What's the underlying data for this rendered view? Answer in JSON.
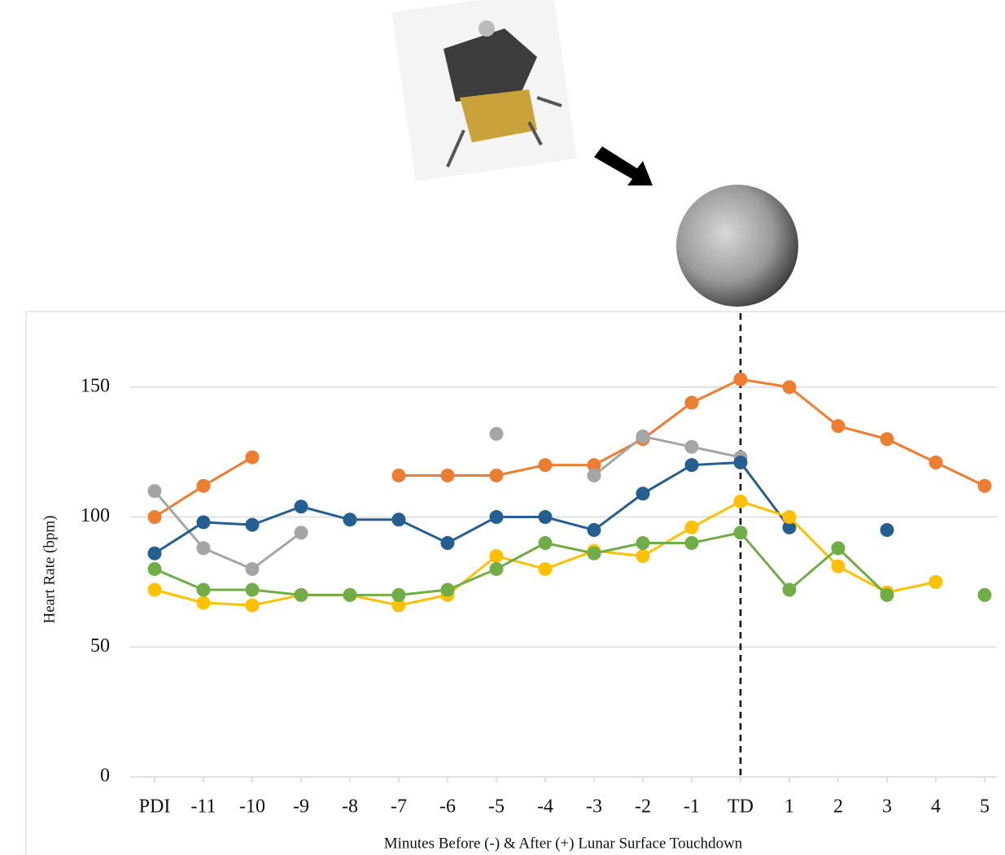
{
  "chart_data": {
    "type": "line",
    "y_label": "Heart Rate (bpm)",
    "x_label": "Minutes Before (-) & After (+) Lunar Surface Touchdown",
    "categories": [
      "PDI",
      "-11",
      "-10",
      "-9",
      "-8",
      "-7",
      "-6",
      "-5",
      "-4",
      "-3",
      "-2",
      "-1",
      "TD",
      "1",
      "2",
      "3",
      "4",
      "5"
    ],
    "ylim": [
      0,
      180
    ],
    "yticks": [
      0,
      50,
      100,
      150
    ],
    "grid": true,
    "series": [
      {
        "color": "#ed7d31",
        "values": [
          100,
          112,
          123,
          null,
          null,
          116,
          116,
          116,
          120,
          120,
          130,
          144,
          153,
          150,
          135,
          130,
          121,
          112
        ]
      },
      {
        "color": "#a5a5a5",
        "values": [
          110,
          88,
          80,
          94,
          null,
          null,
          null,
          132,
          null,
          116,
          131,
          127,
          123,
          null,
          null,
          null,
          null,
          null
        ]
      },
      {
        "color": "#255e91",
        "values": [
          86,
          98,
          97,
          104,
          99,
          99,
          90,
          100,
          100,
          95,
          109,
          120,
          121,
          96,
          null,
          95,
          null,
          null
        ]
      },
      {
        "color": "#ffc000",
        "values": [
          72,
          67,
          66,
          70,
          70,
          66,
          70,
          85,
          80,
          87,
          85,
          96,
          106,
          100,
          81,
          71,
          75,
          null
        ]
      },
      {
        "color": "#70ad47",
        "values": [
          80,
          72,
          72,
          70,
          70,
          70,
          72,
          80,
          90,
          86,
          90,
          90,
          94,
          72,
          88,
          70,
          null,
          70
        ]
      }
    ]
  }
}
